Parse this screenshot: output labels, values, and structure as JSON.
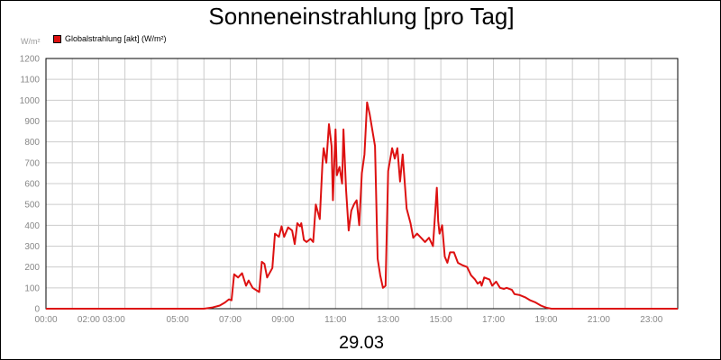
{
  "colors": {
    "series": "#dd1111",
    "grid": "#cccccc",
    "tick_text": "#888888"
  },
  "chart_data": {
    "type": "line",
    "title": "Sonneneinstrahlung [pro Tag]",
    "ylabel": "W/m²",
    "date_label": "29.03",
    "ylim": [
      0,
      1200
    ],
    "xlim": [
      0,
      24
    ],
    "y_ticks": [
      0,
      100,
      200,
      300,
      400,
      500,
      600,
      700,
      800,
      900,
      1000,
      1100,
      1200
    ],
    "x_ticks": [
      {
        "hour": 0,
        "label": "00:00"
      },
      {
        "hour": 2.1,
        "label": "02:00 03:00"
      },
      {
        "hour": 5,
        "label": "05:00"
      },
      {
        "hour": 7,
        "label": "07:00"
      },
      {
        "hour": 9,
        "label": "09:00"
      },
      {
        "hour": 11,
        "label": "11:00"
      },
      {
        "hour": 13,
        "label": "13:00"
      },
      {
        "hour": 15,
        "label": "15:00"
      },
      {
        "hour": 17,
        "label": "17:00"
      },
      {
        "hour": 19,
        "label": "19:00"
      },
      {
        "hour": 21,
        "label": "21:00"
      },
      {
        "hour": 23,
        "label": "23:00"
      }
    ],
    "x_grid_hours": [
      0,
      1,
      2,
      3,
      4,
      5,
      6,
      7,
      8,
      9,
      10,
      11,
      12,
      13,
      14,
      15,
      16,
      17,
      18,
      19,
      20,
      21,
      22,
      23,
      24
    ],
    "grid": true,
    "legend_position": "top-left",
    "series": [
      {
        "name": "Globalstrahlung [akt] (W/m²)",
        "color": "#dd1111",
        "points": [
          [
            0,
            0
          ],
          [
            6.0,
            0
          ],
          [
            6.3,
            5
          ],
          [
            6.6,
            15
          ],
          [
            6.8,
            30
          ],
          [
            6.95,
            45
          ],
          [
            7.05,
            40
          ],
          [
            7.15,
            165
          ],
          [
            7.3,
            150
          ],
          [
            7.45,
            170
          ],
          [
            7.6,
            110
          ],
          [
            7.7,
            135
          ],
          [
            7.85,
            100
          ],
          [
            8.1,
            80
          ],
          [
            8.2,
            225
          ],
          [
            8.3,
            215
          ],
          [
            8.4,
            150
          ],
          [
            8.6,
            195
          ],
          [
            8.7,
            360
          ],
          [
            8.85,
            345
          ],
          [
            8.95,
            395
          ],
          [
            9.05,
            345
          ],
          [
            9.2,
            390
          ],
          [
            9.35,
            375
          ],
          [
            9.45,
            310
          ],
          [
            9.55,
            410
          ],
          [
            9.65,
            395
          ],
          [
            9.7,
            410
          ],
          [
            9.8,
            330
          ],
          [
            9.9,
            320
          ],
          [
            10.05,
            335
          ],
          [
            10.15,
            320
          ],
          [
            10.25,
            500
          ],
          [
            10.4,
            430
          ],
          [
            10.5,
            690
          ],
          [
            10.55,
            770
          ],
          [
            10.65,
            700
          ],
          [
            10.75,
            885
          ],
          [
            10.85,
            780
          ],
          [
            10.9,
            520
          ],
          [
            11.0,
            860
          ],
          [
            11.05,
            640
          ],
          [
            11.15,
            680
          ],
          [
            11.25,
            600
          ],
          [
            11.3,
            860
          ],
          [
            11.4,
            570
          ],
          [
            11.5,
            375
          ],
          [
            11.6,
            470
          ],
          [
            11.7,
            500
          ],
          [
            11.8,
            520
          ],
          [
            11.9,
            400
          ],
          [
            12.0,
            650
          ],
          [
            12.1,
            740
          ],
          [
            12.2,
            990
          ],
          [
            12.3,
            930
          ],
          [
            12.5,
            780
          ],
          [
            12.6,
            240
          ],
          [
            12.7,
            160
          ],
          [
            12.8,
            100
          ],
          [
            12.9,
            110
          ],
          [
            13.0,
            660
          ],
          [
            13.15,
            770
          ],
          [
            13.25,
            720
          ],
          [
            13.35,
            770
          ],
          [
            13.45,
            610
          ],
          [
            13.55,
            740
          ],
          [
            13.7,
            480
          ],
          [
            13.85,
            410
          ],
          [
            13.95,
            340
          ],
          [
            14.1,
            360
          ],
          [
            14.25,
            340
          ],
          [
            14.4,
            320
          ],
          [
            14.55,
            340
          ],
          [
            14.7,
            300
          ],
          [
            14.85,
            580
          ],
          [
            14.9,
            420
          ],
          [
            14.95,
            360
          ],
          [
            15.05,
            400
          ],
          [
            15.15,
            250
          ],
          [
            15.25,
            220
          ],
          [
            15.35,
            270
          ],
          [
            15.5,
            270
          ],
          [
            15.65,
            220
          ],
          [
            15.8,
            210
          ],
          [
            16.0,
            200
          ],
          [
            16.15,
            160
          ],
          [
            16.3,
            140
          ],
          [
            16.4,
            120
          ],
          [
            16.5,
            130
          ],
          [
            16.55,
            110
          ],
          [
            16.65,
            150
          ],
          [
            16.85,
            140
          ],
          [
            16.95,
            110
          ],
          [
            17.1,
            130
          ],
          [
            17.25,
            100
          ],
          [
            17.4,
            95
          ],
          [
            17.5,
            100
          ],
          [
            17.7,
            90
          ],
          [
            17.8,
            70
          ],
          [
            18.0,
            65
          ],
          [
            18.2,
            55
          ],
          [
            18.4,
            40
          ],
          [
            18.6,
            30
          ],
          [
            18.8,
            15
          ],
          [
            19.0,
            5
          ],
          [
            19.2,
            0
          ],
          [
            24.0,
            0
          ]
        ]
      }
    ]
  }
}
